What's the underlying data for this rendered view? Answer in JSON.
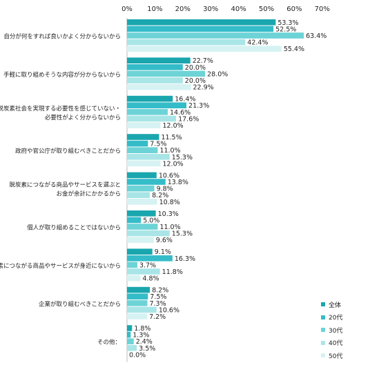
{
  "chart_data": {
    "type": "bar",
    "orientation": "horizontal",
    "title": "",
    "xlabel": "",
    "ylabel": "",
    "xlim": [
      0,
      70
    ],
    "ticks": [
      "0%",
      "10%",
      "20%",
      "30%",
      "40%",
      "50%",
      "60%",
      "70%"
    ],
    "tick_values": [
      0,
      10,
      20,
      30,
      40,
      50,
      60,
      70
    ],
    "grid": false,
    "legend_position": "bottom-right",
    "categories": [
      [
        "自分が何をすれば良いかよく分からないから"
      ],
      [
        "手軽に取り組めそうな内容が分からないから"
      ],
      [
        "脱炭素社会を実現する必要性を感じていない・",
        "必要性がよく分からないから"
      ],
      [
        "政府や官公庁が取り組むべきことだから"
      ],
      [
        "脱炭素につながる商品やサービスを選ぶと",
        "お金が余計にかかるから"
      ],
      [
        "個人が取り組めることではないから"
      ],
      [
        "脱炭素につながる商品やサービスが身近にないから"
      ],
      [
        "企業が取り組むべきことだから"
      ],
      [
        "その他："
      ]
    ],
    "series": [
      {
        "name": "全体",
        "color": "#1aa6ae",
        "values": [
          53.3,
          22.7,
          16.4,
          11.5,
          10.6,
          10.3,
          9.1,
          8.2,
          1.8
        ],
        "labels": [
          "53.3%",
          "22.7%",
          "16.4%",
          "11.5%",
          "10.6%",
          "10.3%",
          "9.1%",
          "8.2%",
          "1.8%"
        ]
      },
      {
        "name": "20代",
        "color": "#35bcc9",
        "values": [
          52.5,
          20.0,
          21.3,
          7.5,
          13.8,
          5.0,
          16.3,
          7.5,
          1.3
        ],
        "labels": [
          "52.5%",
          "20.0%",
          "21.3%",
          "7.5%",
          "13.8%",
          "5.0%",
          "16.3%",
          "7.5%",
          "1.3%"
        ]
      },
      {
        "name": "30代",
        "color": "#6dd3d6",
        "values": [
          63.4,
          28.0,
          14.6,
          11.0,
          9.8,
          11.0,
          3.7,
          7.3,
          2.4
        ],
        "labels": [
          "63.4%",
          "28.0%",
          "14.6%",
          "11.0%",
          "9.8%",
          "11.0%",
          "3.7%",
          "7.3%",
          "2.4%"
        ]
      },
      {
        "name": "40代",
        "color": "#a9e5e7",
        "values": [
          42.4,
          20.0,
          17.6,
          15.3,
          8.2,
          15.3,
          11.8,
          10.6,
          3.5
        ],
        "labels": [
          "42.4%",
          "20.0%",
          "17.6%",
          "15.3%",
          "8.2%",
          "15.3%",
          "11.8%",
          "10.6%",
          "3.5%"
        ]
      },
      {
        "name": "50代",
        "color": "#d6f2f3",
        "values": [
          55.4,
          22.9,
          12.0,
          12.0,
          10.8,
          9.6,
          4.8,
          7.2,
          0.0
        ],
        "labels": [
          "55.4%",
          "22.9%",
          "12.0%",
          "12.0%",
          "10.8%",
          "9.6%",
          "4.8%",
          "7.2%",
          "0.0%"
        ]
      }
    ]
  }
}
